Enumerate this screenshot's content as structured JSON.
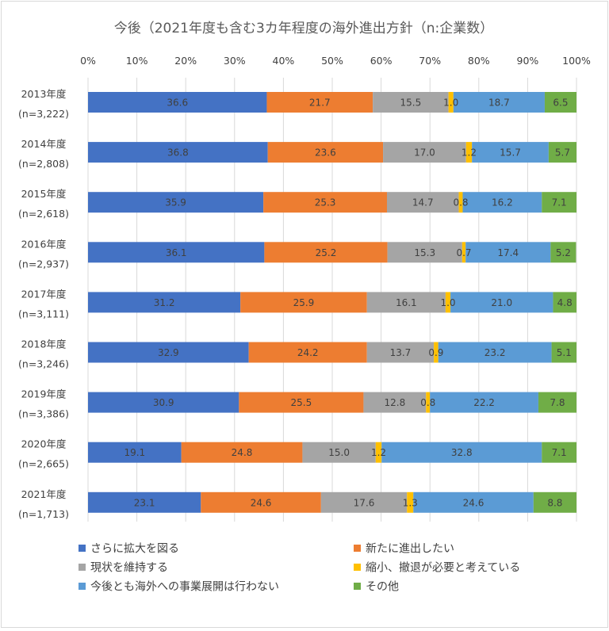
{
  "chart_data": {
    "type": "bar",
    "orientation": "horizontal",
    "stacked": "percent",
    "title": "今後（2021年度も含む3カ年程度の海外進出方針（n:企業数）",
    "x_ticks": [
      "0%",
      "10%",
      "20%",
      "30%",
      "40%",
      "50%",
      "60%",
      "70%",
      "80%",
      "90%",
      "100%"
    ],
    "xlim": [
      0,
      100
    ],
    "grid": true,
    "legend_position": "bottom",
    "categories": [
      {
        "year": "2013年度",
        "n": "(n=3,222)"
      },
      {
        "year": "2014年度",
        "n": "(n=2,808)"
      },
      {
        "year": "2015年度",
        "n": "(n=2,618)"
      },
      {
        "year": "2016年度",
        "n": "(n=2,937)"
      },
      {
        "year": "2017年度",
        "n": "(n=3,111)"
      },
      {
        "year": "2018年度",
        "n": "(n=3,246)"
      },
      {
        "year": "2019年度",
        "n": "(n=3,386)"
      },
      {
        "year": "2020年度",
        "n": "(n=2,665)"
      },
      {
        "year": "2021年度",
        "n": "(n=1,713)"
      }
    ],
    "series": [
      {
        "name": "さらに拡大を図る",
        "color": "#4472c4",
        "values": [
          36.6,
          36.8,
          35.9,
          36.1,
          31.2,
          32.9,
          30.9,
          19.1,
          23.1
        ]
      },
      {
        "name": "新たに進出したい",
        "color": "#ed7d31",
        "values": [
          21.7,
          23.6,
          25.3,
          25.2,
          25.9,
          24.2,
          25.5,
          24.8,
          24.6
        ]
      },
      {
        "name": "現状を維持する",
        "color": "#a5a5a5",
        "values": [
          15.5,
          17.0,
          14.7,
          15.3,
          16.1,
          13.7,
          12.8,
          15.0,
          17.6
        ]
      },
      {
        "name": "縮小、撤退が必要と考えている",
        "color": "#ffc000",
        "values": [
          1.0,
          1.2,
          0.8,
          0.7,
          1.0,
          0.9,
          0.8,
          1.2,
          1.3
        ]
      },
      {
        "name": "今後とも海外への事業展開は行わない",
        "color": "#5b9bd5",
        "values": [
          18.7,
          15.7,
          16.2,
          17.4,
          21.0,
          23.2,
          22.2,
          32.8,
          24.6
        ]
      },
      {
        "name": "その他",
        "color": "#70ad47",
        "values": [
          6.5,
          5.7,
          7.1,
          5.2,
          4.8,
          5.1,
          7.8,
          7.1,
          8.8
        ]
      }
    ]
  }
}
